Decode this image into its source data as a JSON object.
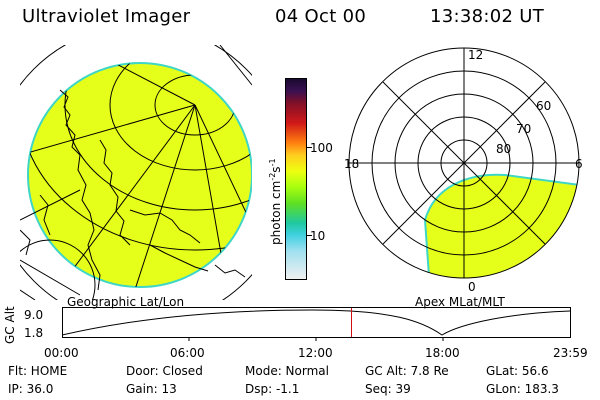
{
  "header": {
    "instrument": "Ultraviolet Imager",
    "date": "04 Oct 00",
    "time": "13:38:02 UT"
  },
  "colorbar": {
    "unit": "photon cm",
    "unit_exp1": "-2",
    "unit_s": "s",
    "unit_exp2": "-1",
    "tick_100": "100",
    "tick_10": "10"
  },
  "left_panel": {
    "caption": "Geographic Lat/Lon",
    "fill_color": "#e6ff1a"
  },
  "right_panel": {
    "caption": "Apex MLat/MLT",
    "label_12": "12",
    "label_18": "18",
    "label_6": "6",
    "label_0": "0",
    "label_60": "60",
    "label_70": "70",
    "label_80": "80"
  },
  "orbit": {
    "ylabel": "GC Alt",
    "y_top": "9.0",
    "y_bottom": "1.8",
    "ticks": [
      "00:00",
      "06:00",
      "12:00",
      "18:00",
      "23:59"
    ],
    "current_time_fraction": 0.5681
  },
  "info": {
    "row1": [
      "Flt: HOME",
      "Door: Closed",
      "Mode: Normal",
      "GC Alt: 7.8 Re",
      "GLat:  56.6"
    ],
    "row2": [
      "IP: 36.0",
      "Gain: 13",
      "Dsp:   -1.1",
      "Seq: 39",
      "GLon: 183.3"
    ]
  }
}
